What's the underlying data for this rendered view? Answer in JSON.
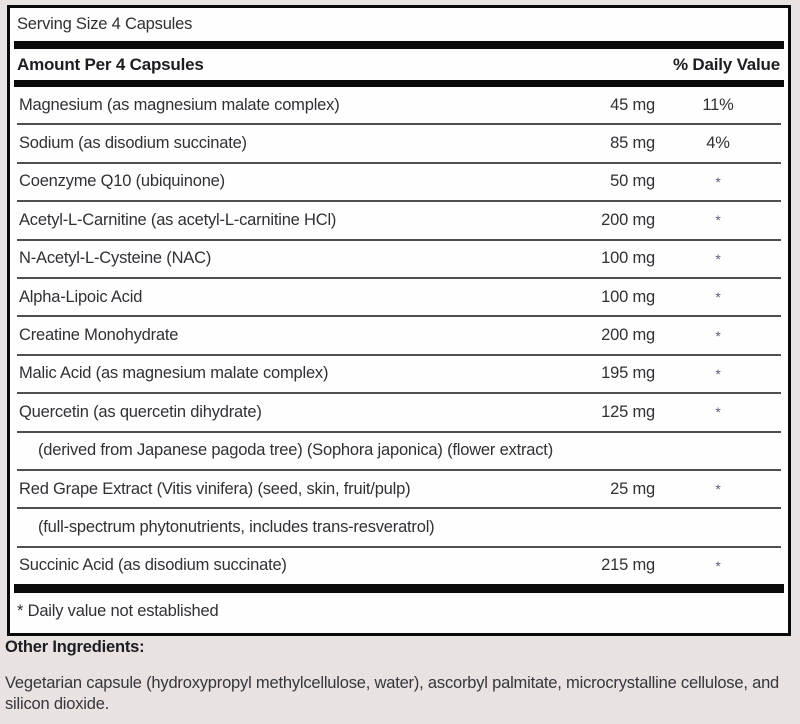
{
  "panel": {
    "serving_size": "Serving Size 4 Capsules",
    "header": {
      "amount_label": "Amount Per 4 Capsules",
      "dv_label": "% Daily Value"
    },
    "rows": [
      {
        "name": "Magnesium (as magnesium malate complex)",
        "amount": "45 mg",
        "dv": "11%"
      },
      {
        "name": "Sodium (as disodium succinate)",
        "amount": "85 mg",
        "dv": "4%"
      },
      {
        "name": "Coenzyme Q10 (ubiquinone)",
        "amount": "50 mg",
        "dv": "*"
      },
      {
        "name": "Acetyl-L-Carnitine (as acetyl-L-carnitine HCl)",
        "amount": "200 mg",
        "dv": "*"
      },
      {
        "name": "N-Acetyl-L-Cysteine (NAC)",
        "amount": "100 mg",
        "dv": "*"
      },
      {
        "name": "Alpha-Lipoic Acid",
        "amount": "100 mg",
        "dv": "*"
      },
      {
        "name": "Creatine Monohydrate",
        "amount": "200 mg",
        "dv": "*"
      },
      {
        "name": "Malic Acid (as magnesium malate complex)",
        "amount": "195 mg",
        "dv": "*"
      },
      {
        "name": "Quercetin (as quercetin dihydrate)",
        "amount": "125 mg",
        "dv": "*"
      },
      {
        "name": "(derived from Japanese pagoda tree) (Sophora japonica) (flower extract)",
        "amount": "",
        "dv": ""
      },
      {
        "name": "Red Grape Extract (Vitis vinifera) (seed, skin, fruit/pulp)",
        "amount": "25 mg",
        "dv": "*"
      },
      {
        "name": "(full-spectrum phytonutrients, includes trans-resveratrol)",
        "amount": "",
        "dv": ""
      },
      {
        "name": "Succinic Acid (as disodium succinate)",
        "amount": "215 mg",
        "dv": "*"
      }
    ],
    "footnote": "* Daily value not established"
  },
  "other_ingredients": {
    "title": "Other Ingredients:",
    "text": "Vegetarian capsule (hydroxypropyl methylcellulose, water), ascorbyl palmitate, microcrystalline cellulose, and silicon dioxide."
  },
  "colors": {
    "page_background": "#e8e2e1",
    "panel_background": "#fefefe",
    "rule_black": "#0a0a0a",
    "separator_gray": "#4f4f4f",
    "text": "#303036",
    "asterisk": "#5c5c72"
  }
}
